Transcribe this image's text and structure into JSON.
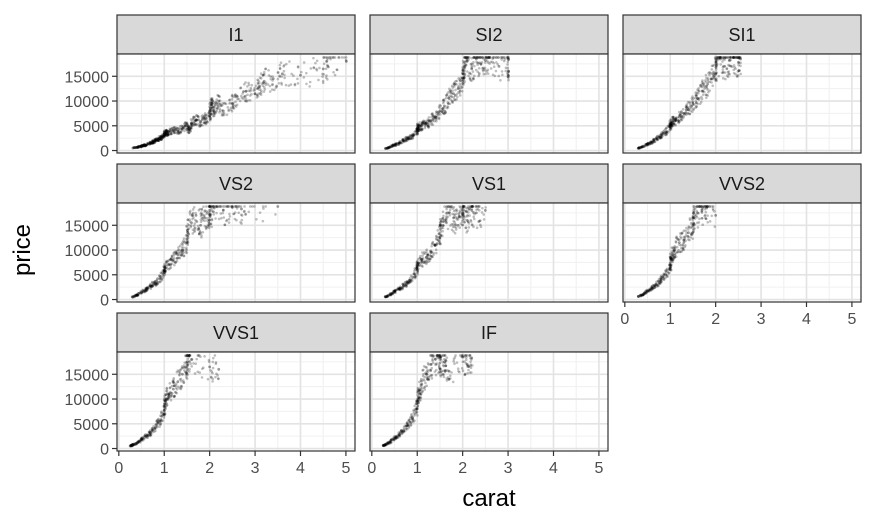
{
  "chart_data": {
    "type": "scatter",
    "xlabel": "carat",
    "ylabel": "price",
    "xlim": [
      -0.04,
      5.2
    ],
    "ylim": [
      -500,
      19500
    ],
    "x_ticks": [
      0,
      1,
      2,
      3,
      4,
      5
    ],
    "x_tick_labels": [
      "0",
      "1",
      "2",
      "3",
      "4",
      "5"
    ],
    "y_ticks": [
      0,
      5000,
      10000,
      15000
    ],
    "y_tick_labels": [
      "0",
      "5000",
      "10000",
      "15000"
    ],
    "point_color": "#000000",
    "point_alpha": 0.25,
    "panels": [
      {
        "label": "I1",
        "points": [
          [
            0.31,
            500
          ],
          [
            0.42,
            700
          ],
          [
            0.5,
            900
          ],
          [
            0.55,
            1000
          ],
          [
            0.6,
            1100
          ],
          [
            0.7,
            1500
          ],
          [
            0.75,
            1700
          ],
          [
            0.8,
            2000
          ],
          [
            0.85,
            2200
          ],
          [
            0.9,
            2500
          ],
          [
            0.95,
            2700
          ],
          [
            1.0,
            3000
          ],
          [
            1.02,
            3400
          ],
          [
            1.05,
            3600
          ],
          [
            1.1,
            3800
          ],
          [
            1.2,
            4100
          ],
          [
            1.3,
            3900
          ],
          [
            1.4,
            4500
          ],
          [
            1.5,
            5000
          ],
          [
            1.55,
            4200
          ],
          [
            1.6,
            5500
          ],
          [
            1.7,
            6200
          ],
          [
            1.8,
            5800
          ],
          [
            1.9,
            6400
          ],
          [
            2.0,
            7000
          ],
          [
            2.02,
            8500
          ],
          [
            2.05,
            9500
          ],
          [
            2.1,
            7800
          ],
          [
            2.2,
            10000
          ],
          [
            2.3,
            8000
          ],
          [
            2.5,
            9500
          ],
          [
            2.6,
            11000
          ],
          [
            2.8,
            12000
          ],
          [
            3.0,
            11500
          ],
          [
            3.1,
            13000
          ],
          [
            3.2,
            14000
          ],
          [
            3.4,
            14500
          ],
          [
            3.6,
            15500
          ],
          [
            4.0,
            15200
          ],
          [
            4.5,
            16500
          ],
          [
            4.6,
            17000
          ],
          [
            5.01,
            18000
          ]
        ]
      },
      {
        "label": "SI2",
        "points": [
          [
            0.3,
            400
          ],
          [
            0.4,
            700
          ],
          [
            0.5,
            1100
          ],
          [
            0.6,
            1500
          ],
          [
            0.7,
            2000
          ],
          [
            0.8,
            2500
          ],
          [
            0.9,
            3000
          ],
          [
            1.0,
            4000
          ],
          [
            1.01,
            4600
          ],
          [
            1.05,
            4900
          ],
          [
            1.1,
            5000
          ],
          [
            1.2,
            5500
          ],
          [
            1.3,
            6000
          ],
          [
            1.4,
            6800
          ],
          [
            1.5,
            8000
          ],
          [
            1.6,
            9000
          ],
          [
            1.7,
            10500
          ],
          [
            1.8,
            11500
          ],
          [
            1.9,
            12500
          ],
          [
            2.0,
            14000
          ],
          [
            2.01,
            15500
          ],
          [
            2.05,
            17000
          ],
          [
            2.1,
            18000
          ],
          [
            2.2,
            16500
          ],
          [
            2.3,
            18500
          ],
          [
            2.4,
            17500
          ],
          [
            2.5,
            18200
          ],
          [
            2.6,
            18800
          ],
          [
            2.8,
            17000
          ],
          [
            3.0,
            18500
          ],
          [
            3.01,
            16000
          ]
        ]
      },
      {
        "label": "SI1",
        "points": [
          [
            0.3,
            450
          ],
          [
            0.4,
            800
          ],
          [
            0.5,
            1300
          ],
          [
            0.6,
            1700
          ],
          [
            0.7,
            2300
          ],
          [
            0.8,
            3000
          ],
          [
            0.9,
            3700
          ],
          [
            1.0,
            4800
          ],
          [
            1.01,
            5600
          ],
          [
            1.05,
            5800
          ],
          [
            1.1,
            6000
          ],
          [
            1.2,
            6800
          ],
          [
            1.3,
            7500
          ],
          [
            1.4,
            8200
          ],
          [
            1.5,
            9500
          ],
          [
            1.6,
            10500
          ],
          [
            1.7,
            12000
          ],
          [
            1.8,
            13000
          ],
          [
            1.9,
            14500
          ],
          [
            2.0,
            15500
          ],
          [
            2.01,
            17500
          ],
          [
            2.1,
            18500
          ],
          [
            2.2,
            17000
          ],
          [
            2.3,
            18200
          ],
          [
            2.4,
            18800
          ],
          [
            2.5,
            17800
          ],
          [
            2.55,
            18500
          ]
        ]
      },
      {
        "label": "VS2",
        "points": [
          [
            0.3,
            500
          ],
          [
            0.4,
            900
          ],
          [
            0.5,
            1500
          ],
          [
            0.6,
            2000
          ],
          [
            0.7,
            2700
          ],
          [
            0.8,
            3300
          ],
          [
            0.9,
            4200
          ],
          [
            1.0,
            5500
          ],
          [
            1.01,
            6500
          ],
          [
            1.1,
            7000
          ],
          [
            1.2,
            8000
          ],
          [
            1.3,
            9000
          ],
          [
            1.4,
            10000
          ],
          [
            1.5,
            11500
          ],
          [
            1.51,
            14000
          ],
          [
            1.6,
            15500
          ],
          [
            1.7,
            17000
          ],
          [
            1.8,
            15000
          ],
          [
            1.9,
            16500
          ],
          [
            2.0,
            18000
          ],
          [
            2.01,
            17000
          ],
          [
            2.1,
            18500
          ],
          [
            2.3,
            18000
          ],
          [
            2.5,
            18600
          ],
          [
            2.7,
            18300
          ],
          [
            3.5,
            18800
          ]
        ]
      },
      {
        "label": "VS1",
        "points": [
          [
            0.3,
            550
          ],
          [
            0.4,
            950
          ],
          [
            0.5,
            1600
          ],
          [
            0.6,
            2100
          ],
          [
            0.7,
            2800
          ],
          [
            0.8,
            3500
          ],
          [
            0.9,
            4500
          ],
          [
            1.0,
            6000
          ],
          [
            1.01,
            7000
          ],
          [
            1.1,
            8000
          ],
          [
            1.2,
            8500
          ],
          [
            1.3,
            9500
          ],
          [
            1.4,
            11000
          ],
          [
            1.5,
            12500
          ],
          [
            1.51,
            15000
          ],
          [
            1.6,
            16000
          ],
          [
            1.7,
            17500
          ],
          [
            1.8,
            16500
          ],
          [
            1.9,
            15000
          ],
          [
            2.0,
            17500
          ],
          [
            2.01,
            18500
          ],
          [
            2.1,
            16000
          ],
          [
            2.2,
            18000
          ],
          [
            2.3,
            17500
          ],
          [
            2.5,
            18000
          ]
        ]
      },
      {
        "label": "VVS2",
        "points": [
          [
            0.3,
            600
          ],
          [
            0.4,
            1000
          ],
          [
            0.5,
            1700
          ],
          [
            0.6,
            2300
          ],
          [
            0.7,
            3000
          ],
          [
            0.8,
            4000
          ],
          [
            0.9,
            5000
          ],
          [
            1.0,
            6500
          ],
          [
            1.01,
            8000
          ],
          [
            1.05,
            9000
          ],
          [
            1.1,
            10000
          ],
          [
            1.2,
            11500
          ],
          [
            1.3,
            12000
          ],
          [
            1.4,
            13500
          ],
          [
            1.5,
            15000
          ],
          [
            1.51,
            16500
          ],
          [
            1.6,
            17500
          ],
          [
            1.7,
            18000
          ],
          [
            1.8,
            18500
          ],
          [
            2.0,
            17000
          ]
        ]
      },
      {
        "label": "VVS1",
        "points": [
          [
            0.25,
            500
          ],
          [
            0.3,
            700
          ],
          [
            0.4,
            1100
          ],
          [
            0.5,
            1800
          ],
          [
            0.6,
            2500
          ],
          [
            0.7,
            3200
          ],
          [
            0.8,
            4200
          ],
          [
            0.9,
            5500
          ],
          [
            1.0,
            7000
          ],
          [
            1.01,
            9000
          ],
          [
            1.05,
            10000
          ],
          [
            1.1,
            11000
          ],
          [
            1.2,
            12000
          ],
          [
            1.3,
            13500
          ],
          [
            1.4,
            15000
          ],
          [
            1.5,
            16500
          ],
          [
            1.51,
            17500
          ],
          [
            1.6,
            18000
          ],
          [
            2.0,
            16500
          ],
          [
            2.2,
            16000
          ]
        ]
      },
      {
        "label": "IF",
        "points": [
          [
            0.25,
            600
          ],
          [
            0.3,
            800
          ],
          [
            0.4,
            1300
          ],
          [
            0.5,
            2000
          ],
          [
            0.6,
            2800
          ],
          [
            0.7,
            3600
          ],
          [
            0.8,
            4800
          ],
          [
            0.9,
            6200
          ],
          [
            1.0,
            8000
          ],
          [
            1.01,
            10000
          ],
          [
            1.05,
            11000
          ],
          [
            1.1,
            13000
          ],
          [
            1.2,
            15000
          ],
          [
            1.3,
            17000
          ],
          [
            1.4,
            18000
          ],
          [
            1.5,
            18500
          ],
          [
            1.51,
            16000
          ],
          [
            1.6,
            17500
          ],
          [
            1.7,
            14000
          ],
          [
            2.0,
            18500
          ],
          [
            2.1,
            17000
          ],
          [
            2.2,
            18300
          ]
        ]
      }
    ]
  }
}
